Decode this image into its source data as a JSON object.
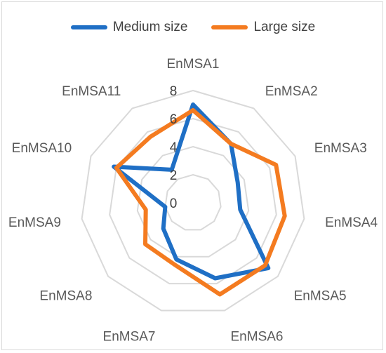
{
  "chart_data": {
    "type": "radar",
    "categories": [
      "EnMSA1",
      "EnMSA2",
      "EnMSA3",
      "EnMSA4",
      "EnMSA5",
      "EnMSA6",
      "EnMSA7",
      "EnMSA8",
      "EnMSA9",
      "EnMSA10",
      "EnMSA11"
    ],
    "series": [
      {
        "name": "Medium size",
        "color": "#1f6fc5",
        "values": [
          7.0,
          5.0,
          3.5,
          3.4,
          7.1,
          5.6,
          4.2,
          2.8,
          2.0,
          6.2,
          2.8
        ]
      },
      {
        "name": "Large size",
        "color": "#f47b20",
        "values": [
          6.6,
          5.0,
          6.5,
          6.6,
          6.8,
          6.8,
          4.6,
          4.5,
          3.4,
          6.0,
          5.6
        ]
      }
    ],
    "ticks": [
      "0",
      "2",
      "4",
      "6",
      "8"
    ],
    "rlim": [
      0,
      8
    ],
    "grid": true,
    "legend_position": "top"
  }
}
